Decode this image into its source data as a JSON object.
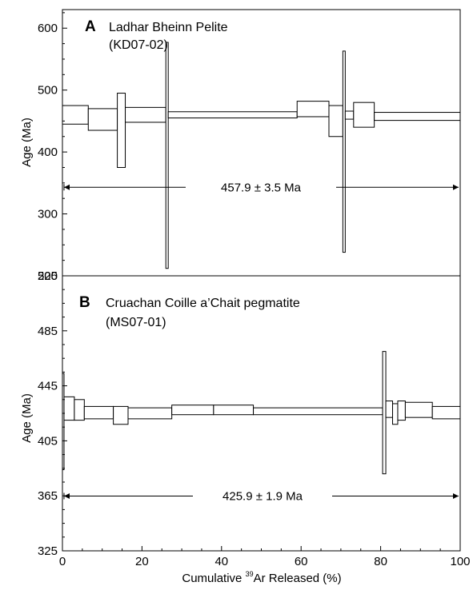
{
  "chart_data": [
    {
      "type": "age-spectrum",
      "panel_label": "A",
      "title": "Ladhar Bheinn Pelite",
      "subtitle": "(KD07-02)",
      "ylabel": "Age (Ma)",
      "xlim": [
        0,
        100
      ],
      "ylim": [
        200,
        630
      ],
      "yticks": [
        "200",
        "300",
        "400",
        "500",
        "600"
      ],
      "plateau": {
        "label": "457.9 ± 3.5 Ma",
        "value": 457.9,
        "from": 0,
        "to": 100
      },
      "steps": [
        {
          "x0": 0,
          "x1": 6.5,
          "lo": 445,
          "hi": 475
        },
        {
          "x0": 6.5,
          "x1": 13.8,
          "lo": 435,
          "hi": 470
        },
        {
          "x0": 13.8,
          "x1": 15.8,
          "lo": 375,
          "hi": 495
        },
        {
          "x0": 15.8,
          "x1": 26,
          "lo": 448,
          "hi": 472
        },
        {
          "x0": 26,
          "x1": 26.6,
          "lo": 212,
          "hi": 577
        },
        {
          "x0": 26.6,
          "x1": 59,
          "lo": 455,
          "hi": 465
        },
        {
          "x0": 59,
          "x1": 67,
          "lo": 457,
          "hi": 482
        },
        {
          "x0": 67,
          "x1": 70.5,
          "lo": 425,
          "hi": 475
        },
        {
          "x0": 70.5,
          "x1": 71.1,
          "lo": 238,
          "hi": 563
        },
        {
          "x0": 71.1,
          "x1": 73.2,
          "lo": 453,
          "hi": 466
        },
        {
          "x0": 73.2,
          "x1": 78.4,
          "lo": 440,
          "hi": 480
        },
        {
          "x0": 78.4,
          "x1": 100,
          "lo": 451,
          "hi": 464
        }
      ]
    },
    {
      "type": "age-spectrum",
      "panel_label": "B",
      "title": "Cruachan Coille a’Chait pegmatite",
      "subtitle": "(MS07-01)",
      "ylabel": "Age (Ma)",
      "xlabel_prefix": "Cumulative ",
      "xlabel_sup": "39",
      "xlabel_suffix": "Ar Released (%)",
      "xlim": [
        0,
        100
      ],
      "xticks": [
        "0",
        "20",
        "40",
        "60",
        "80",
        "100"
      ],
      "ylim": [
        325,
        525
      ],
      "yticks": [
        "325",
        "365",
        "405",
        "445",
        "485",
        "525"
      ],
      "plateau": {
        "label": "425.9 ± 1.9 Ma",
        "value": 425.9,
        "from": 0,
        "to": 100
      },
      "steps": [
        {
          "x0": 0,
          "x1": 0.4,
          "lo": 384,
          "hi": 454
        },
        {
          "x0": 0.4,
          "x1": 3,
          "lo": 420,
          "hi": 437
        },
        {
          "x0": 3,
          "x1": 5.5,
          "lo": 420,
          "hi": 435
        },
        {
          "x0": 5.5,
          "x1": 12.8,
          "lo": 421,
          "hi": 430
        },
        {
          "x0": 12.8,
          "x1": 16.5,
          "lo": 417,
          "hi": 430
        },
        {
          "x0": 16.5,
          "x1": 27.5,
          "lo": 421,
          "hi": 429
        },
        {
          "x0": 27.5,
          "x1": 38,
          "lo": 424,
          "hi": 431
        },
        {
          "x0": 38,
          "x1": 48,
          "lo": 424,
          "hi": 431
        },
        {
          "x0": 48,
          "x1": 80.5,
          "lo": 424,
          "hi": 429
        },
        {
          "x0": 80.5,
          "x1": 81.3,
          "lo": 381,
          "hi": 470
        },
        {
          "x0": 81.3,
          "x1": 83,
          "lo": 422,
          "hi": 434
        },
        {
          "x0": 83,
          "x1": 84.3,
          "lo": 417,
          "hi": 432
        },
        {
          "x0": 84.3,
          "x1": 86.2,
          "lo": 420,
          "hi": 434
        },
        {
          "x0": 86.2,
          "x1": 93,
          "lo": 422,
          "hi": 433
        },
        {
          "x0": 93,
          "x1": 100,
          "lo": 421,
          "hi": 430
        }
      ]
    }
  ]
}
